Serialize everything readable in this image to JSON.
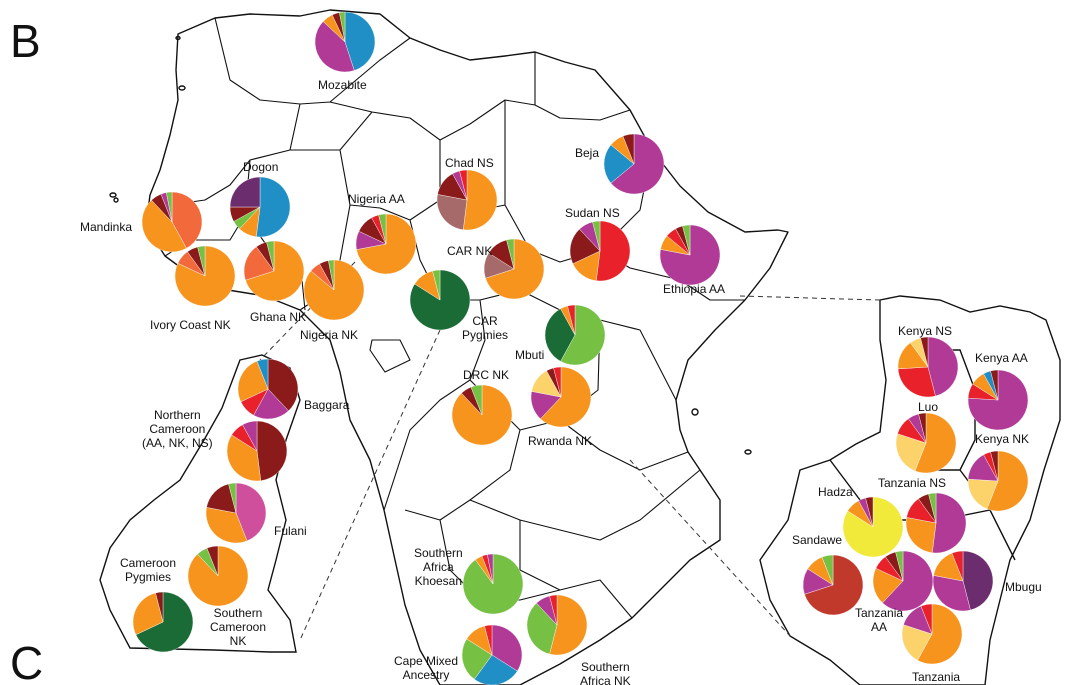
{
  "panel_labels": {
    "top": "B",
    "bottom": "C"
  },
  "colors": {
    "orange": "#f7941d",
    "magenta": "#b03a96",
    "blue": "#1f8fc6",
    "darkred": "#8b1a1a",
    "red": "#e8212b",
    "green_dark": "#1a6b35",
    "green_light": "#76c043",
    "yellow": "#f1ea3a",
    "lightorange": "#fcd26a",
    "purple": "#6b2d6e",
    "mauve": "#a66a6a",
    "pink": "#d04f9c",
    "brickred": "#c0392b",
    "tomato": "#f26a3b"
  },
  "populations": [
    {
      "id": "mozabite",
      "label": "Mozabite",
      "slices": [
        {
          "c": "blue",
          "v": 45
        },
        {
          "c": "magenta",
          "v": 42
        },
        {
          "c": "orange",
          "v": 6
        },
        {
          "c": "darkred",
          "v": 4
        },
        {
          "c": "green_light",
          "v": 3
        }
      ]
    },
    {
      "id": "dogon",
      "label": "Dogon",
      "slices": [
        {
          "c": "blue",
          "v": 52
        },
        {
          "c": "orange",
          "v": 10
        },
        {
          "c": "green_light",
          "v": 5
        },
        {
          "c": "darkred",
          "v": 8
        },
        {
          "c": "purple",
          "v": 25
        }
      ]
    },
    {
      "id": "mandinka",
      "label": "Mandinka",
      "slices": [
        {
          "c": "tomato",
          "v": 42
        },
        {
          "c": "orange",
          "v": 46
        },
        {
          "c": "darkred",
          "v": 6
        },
        {
          "c": "magenta",
          "v": 3
        },
        {
          "c": "green_light",
          "v": 3
        }
      ]
    },
    {
      "id": "ivorycoast",
      "label": "Ivory Coast NK",
      "slices": [
        {
          "c": "orange",
          "v": 82
        },
        {
          "c": "tomato",
          "v": 8
        },
        {
          "c": "darkred",
          "v": 6
        },
        {
          "c": "green_light",
          "v": 4
        }
      ]
    },
    {
      "id": "ghana",
      "label": "Ghana NK",
      "slices": [
        {
          "c": "orange",
          "v": 70
        },
        {
          "c": "tomato",
          "v": 20
        },
        {
          "c": "darkred",
          "v": 6
        },
        {
          "c": "green_light",
          "v": 4
        }
      ]
    },
    {
      "id": "nigeriaaa",
      "label": "Nigeria AA",
      "slices": [
        {
          "c": "orange",
          "v": 72
        },
        {
          "c": "magenta",
          "v": 10
        },
        {
          "c": "darkred",
          "v": 10
        },
        {
          "c": "red",
          "v": 4
        },
        {
          "c": "green_light",
          "v": 4
        }
      ]
    },
    {
      "id": "nigerianak",
      "label": "Nigeria NK",
      "slices": [
        {
          "c": "orange",
          "v": 86
        },
        {
          "c": "tomato",
          "v": 6
        },
        {
          "c": "darkred",
          "v": 5
        },
        {
          "c": "green_light",
          "v": 3
        }
      ]
    },
    {
      "id": "chad",
      "label": "Chad NS",
      "slices": [
        {
          "c": "orange",
          "v": 52
        },
        {
          "c": "mauve",
          "v": 26
        },
        {
          "c": "darkred",
          "v": 14
        },
        {
          "c": "magenta",
          "v": 4
        },
        {
          "c": "red",
          "v": 4
        }
      ]
    },
    {
      "id": "carnk",
      "label": "CAR NK",
      "slices": [
        {
          "c": "orange",
          "v": 70
        },
        {
          "c": "mauve",
          "v": 14
        },
        {
          "c": "darkred",
          "v": 12
        },
        {
          "c": "green_light",
          "v": 4
        }
      ]
    },
    {
      "id": "carpyg",
      "label": "CAR\nPygmies",
      "slices": [
        {
          "c": "green_dark",
          "v": 84
        },
        {
          "c": "orange",
          "v": 12
        },
        {
          "c": "green_light",
          "v": 4
        }
      ]
    },
    {
      "id": "sudan",
      "label": "Sudan NS",
      "slices": [
        {
          "c": "red",
          "v": 52
        },
        {
          "c": "orange",
          "v": 16
        },
        {
          "c": "darkred",
          "v": 20
        },
        {
          "c": "magenta",
          "v": 8
        },
        {
          "c": "green_light",
          "v": 4
        }
      ]
    },
    {
      "id": "beja",
      "label": "Beja",
      "slices": [
        {
          "c": "magenta",
          "v": 64
        },
        {
          "c": "blue",
          "v": 22
        },
        {
          "c": "orange",
          "v": 8
        },
        {
          "c": "darkred",
          "v": 6
        }
      ]
    },
    {
      "id": "ethiopia",
      "label": "Ethiopia AA",
      "slices": [
        {
          "c": "magenta",
          "v": 78
        },
        {
          "c": "orange",
          "v": 8
        },
        {
          "c": "red",
          "v": 6
        },
        {
          "c": "darkred",
          "v": 4
        },
        {
          "c": "green_light",
          "v": 4
        }
      ]
    },
    {
      "id": "mbuti",
      "label": "Mbuti",
      "slices": [
        {
          "c": "green_light",
          "v": 58
        },
        {
          "c": "green_dark",
          "v": 34
        },
        {
          "c": "orange",
          "v": 4
        },
        {
          "c": "red",
          "v": 4
        }
      ]
    },
    {
      "id": "drc",
      "label": "DRC NK",
      "slices": [
        {
          "c": "orange",
          "v": 88
        },
        {
          "c": "darkred",
          "v": 6
        },
        {
          "c": "green_light",
          "v": 6
        }
      ]
    },
    {
      "id": "rwanda",
      "label": "Rwanda NK",
      "slices": [
        {
          "c": "orange",
          "v": 62
        },
        {
          "c": "magenta",
          "v": 16
        },
        {
          "c": "lightorange",
          "v": 14
        },
        {
          "c": "darkred",
          "v": 4
        },
        {
          "c": "red",
          "v": 4
        }
      ]
    },
    {
      "id": "baggara",
      "label": "Baggara",
      "slices": [
        {
          "c": "darkred",
          "v": 38
        },
        {
          "c": "magenta",
          "v": 20
        },
        {
          "c": "red",
          "v": 10
        },
        {
          "c": "orange",
          "v": 26
        },
        {
          "c": "blue",
          "v": 6
        }
      ]
    },
    {
      "id": "ncam",
      "label": "Northern\nCameroon\n(AA, NK, NS)",
      "slices": [
        {
          "c": "darkred",
          "v": 48
        },
        {
          "c": "orange",
          "v": 36
        },
        {
          "c": "red",
          "v": 8
        },
        {
          "c": "magenta",
          "v": 8
        }
      ]
    },
    {
      "id": "fulani",
      "label": "Fulani",
      "slices": [
        {
          "c": "pink",
          "v": 44
        },
        {
          "c": "orange",
          "v": 34
        },
        {
          "c": "darkred",
          "v": 18
        },
        {
          "c": "green_light",
          "v": 4
        }
      ]
    },
    {
      "id": "campyg",
      "label": "Cameroon\nPygmies",
      "slices": [
        {
          "c": "green_dark",
          "v": 68
        },
        {
          "c": "orange",
          "v": 28
        },
        {
          "c": "darkred",
          "v": 4
        }
      ]
    },
    {
      "id": "scam",
      "label": "Southern\nCameroon\nNK",
      "slices": [
        {
          "c": "orange",
          "v": 88
        },
        {
          "c": "green_light",
          "v": 6
        },
        {
          "c": "darkred",
          "v": 6
        }
      ]
    },
    {
      "id": "khoesan",
      "label": "Southern\nAfrica\nKhoesan",
      "slices": [
        {
          "c": "green_light",
          "v": 90
        },
        {
          "c": "orange",
          "v": 4
        },
        {
          "c": "red",
          "v": 3
        },
        {
          "c": "magenta",
          "v": 3
        }
      ]
    },
    {
      "id": "capemixed",
      "label": "Cape Mixed\nAncestry",
      "slices": [
        {
          "c": "magenta",
          "v": 34
        },
        {
          "c": "blue",
          "v": 26
        },
        {
          "c": "green_light",
          "v": 24
        },
        {
          "c": "orange",
          "v": 12
        },
        {
          "c": "red",
          "v": 4
        }
      ]
    },
    {
      "id": "safnk",
      "label": "Southern\nAfrica NK",
      "slices": [
        {
          "c": "orange",
          "v": 54
        },
        {
          "c": "green_light",
          "v": 34
        },
        {
          "c": "magenta",
          "v": 8
        },
        {
          "c": "red",
          "v": 4
        }
      ]
    },
    {
      "id": "kenyans",
      "label": "Kenya NS",
      "slices": [
        {
          "c": "magenta",
          "v": 46
        },
        {
          "c": "red",
          "v": 28
        },
        {
          "c": "orange",
          "v": 16
        },
        {
          "c": "lightorange",
          "v": 6
        },
        {
          "c": "darkred",
          "v": 4
        }
      ]
    },
    {
      "id": "kenyaaa",
      "label": "Kenya AA",
      "slices": [
        {
          "c": "magenta",
          "v": 76
        },
        {
          "c": "red",
          "v": 8
        },
        {
          "c": "orange",
          "v": 8
        },
        {
          "c": "blue",
          "v": 4
        },
        {
          "c": "darkred",
          "v": 4
        }
      ]
    },
    {
      "id": "luo",
      "label": "Luo",
      "slices": [
        {
          "c": "orange",
          "v": 56
        },
        {
          "c": "lightorange",
          "v": 24
        },
        {
          "c": "red",
          "v": 10
        },
        {
          "c": "magenta",
          "v": 6
        },
        {
          "c": "darkred",
          "v": 4
        }
      ]
    },
    {
      "id": "kenyank",
      "label": "Kenya NK",
      "slices": [
        {
          "c": "orange",
          "v": 56
        },
        {
          "c": "lightorange",
          "v": 20
        },
        {
          "c": "magenta",
          "v": 16
        },
        {
          "c": "red",
          "v": 4
        },
        {
          "c": "darkred",
          "v": 4
        }
      ]
    },
    {
      "id": "hadza",
      "label": "Hadza",
      "slices": [
        {
          "c": "yellow",
          "v": 84
        },
        {
          "c": "orange",
          "v": 8
        },
        {
          "c": "magenta",
          "v": 4
        },
        {
          "c": "darkred",
          "v": 4
        }
      ]
    },
    {
      "id": "tanzanians",
      "label": "Tanzania NS",
      "slices": [
        {
          "c": "magenta",
          "v": 52
        },
        {
          "c": "orange",
          "v": 26
        },
        {
          "c": "red",
          "v": 12
        },
        {
          "c": "darkred",
          "v": 6
        },
        {
          "c": "green_light",
          "v": 4
        }
      ]
    },
    {
      "id": "sandawe",
      "label": "Sandawe",
      "slices": [
        {
          "c": "brickred",
          "v": 70
        },
        {
          "c": "magenta",
          "v": 14
        },
        {
          "c": "orange",
          "v": 10
        },
        {
          "c": "green_light",
          "v": 6
        }
      ]
    },
    {
      "id": "tanzaniaaa",
      "label": "Tanzania\nAA",
      "slices": [
        {
          "c": "magenta",
          "v": 62
        },
        {
          "c": "orange",
          "v": 20
        },
        {
          "c": "red",
          "v": 8
        },
        {
          "c": "darkred",
          "v": 6
        },
        {
          "c": "green_light",
          "v": 4
        }
      ]
    },
    {
      "id": "mbugu",
      "label": "Mbugu",
      "slices": [
        {
          "c": "purple",
          "v": 46
        },
        {
          "c": "magenta",
          "v": 32
        },
        {
          "c": "orange",
          "v": 16
        },
        {
          "c": "red",
          "v": 6
        }
      ]
    },
    {
      "id": "tanzania",
      "label": "Tanzania",
      "slices": [
        {
          "c": "orange",
          "v": 58
        },
        {
          "c": "lightorange",
          "v": 22
        },
        {
          "c": "magenta",
          "v": 14
        },
        {
          "c": "red",
          "v": 6
        }
      ]
    }
  ]
}
